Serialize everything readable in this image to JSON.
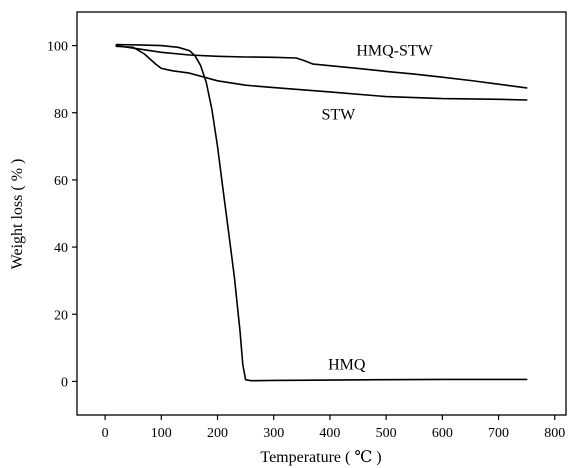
{
  "chart_data": {
    "type": "line",
    "title": "",
    "xlabel": "Temperature ( ℃ )",
    "ylabel": "Weight loss ( % )",
    "xlim": [
      -50,
      820
    ],
    "ylim": [
      -10,
      110
    ],
    "xticks": [
      0,
      100,
      200,
      300,
      400,
      500,
      600,
      700,
      800
    ],
    "yticks": [
      0,
      20,
      40,
      60,
      80,
      100
    ],
    "legend": "none",
    "grid": false,
    "series": [
      {
        "name": "HMQ-STW",
        "x": [
          20,
          60,
          100,
          150,
          200,
          250,
          300,
          340,
          355,
          370,
          400,
          450,
          500,
          550,
          600,
          650,
          700,
          750
        ],
        "y": [
          100,
          99,
          98,
          97.2,
          96.8,
          96.6,
          96.5,
          96.3,
          95.5,
          94.5,
          94,
          93.2,
          92.3,
          91.5,
          90.6,
          89.6,
          88.5,
          87.4
        ]
      },
      {
        "name": "STW",
        "x": [
          20,
          50,
          70,
          90,
          100,
          120,
          150,
          200,
          250,
          300,
          400,
          500,
          600,
          700,
          750
        ],
        "y": [
          99.8,
          99.5,
          97.5,
          94.5,
          93.2,
          92.5,
          91.8,
          89.5,
          88.2,
          87.5,
          86.2,
          84.8,
          84.2,
          84,
          83.8
        ]
      },
      {
        "name": "HMQ",
        "x": [
          20,
          60,
          100,
          130,
          150,
          160,
          170,
          180,
          190,
          200,
          210,
          220,
          230,
          240,
          245,
          250,
          260,
          300,
          400,
          500,
          600,
          700,
          750
        ],
        "y": [
          100.3,
          100.2,
          100,
          99.5,
          98.5,
          97,
          94,
          89,
          81,
          70,
          57,
          44,
          31,
          15,
          5,
          0.5,
          0.2,
          0.3,
          0.4,
          0.5,
          0.6,
          0.6,
          0.6
        ]
      }
    ],
    "labels": [
      {
        "text": "HMQ-STW",
        "x": 515,
        "y": 98.5
      },
      {
        "text": "STW",
        "x": 415,
        "y": 79.5
      },
      {
        "text": "HMQ",
        "x": 430,
        "y": 5
      }
    ]
  }
}
